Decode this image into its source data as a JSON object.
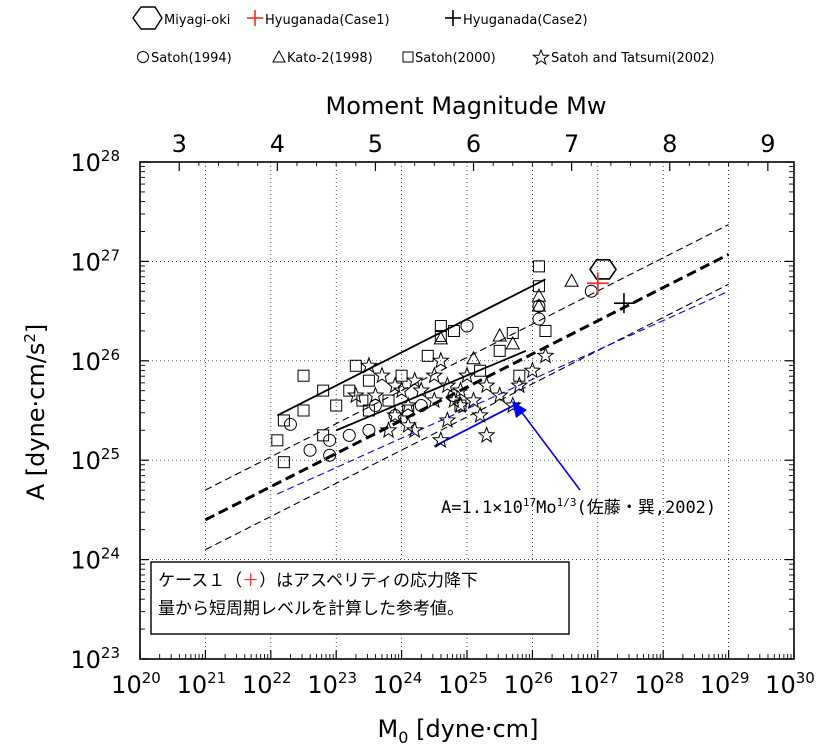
{
  "legend": {
    "row1": [
      {
        "symbol": "hexagon",
        "label": "Miyagi-oki",
        "color": "#000000"
      },
      {
        "symbol": "plus",
        "label": "Hyuganada(Case1)",
        "color": "#ff2a2a"
      },
      {
        "symbol": "plus",
        "label": "Hyuganada(Case2)",
        "color": "#000000"
      }
    ],
    "row2": [
      {
        "symbol": "circle",
        "label": "Satoh(1994)"
      },
      {
        "symbol": "triangle",
        "label": "Kato-2(1998)"
      },
      {
        "symbol": "square",
        "label": "Satoh(2000)"
      },
      {
        "symbol": "star",
        "label": "Satoh and Tatsumi(2002)"
      }
    ]
  },
  "note": {
    "line1_a": "ケース１（",
    "line1_plus": "＋",
    "line1_b": "）はアスペリティの応力降下",
    "line2": "量から短周期レベルを計算した参考値。",
    "plus_color": "#ff2a2a"
  },
  "chart_data": {
    "type": "scatter",
    "xscale": "log",
    "yscale": "log",
    "xlabel_main": "M",
    "xlabel_sub": "0",
    "xlabel_rest": " [dyne·cm]",
    "ylabel": "A [dyne·cm/s",
    "ylabel_sup": "2",
    "ylabel_end": "]",
    "top_axis_title": "Moment Magnitude Mw",
    "xlim_exp": [
      20,
      30
    ],
    "ylim_exp": [
      23,
      28
    ],
    "x_ticks": [
      {
        "base": "10",
        "exp": "20"
      },
      {
        "base": "10",
        "exp": "21"
      },
      {
        "base": "10",
        "exp": "22"
      },
      {
        "base": "10",
        "exp": "23"
      },
      {
        "base": "10",
        "exp": "24"
      },
      {
        "base": "10",
        "exp": "25"
      },
      {
        "base": "10",
        "exp": "26"
      },
      {
        "base": "10",
        "exp": "27"
      },
      {
        "base": "10",
        "exp": "28"
      },
      {
        "base": "10",
        "exp": "29"
      },
      {
        "base": "10",
        "exp": "30"
      }
    ],
    "y_ticks": [
      {
        "base": "10",
        "exp": "23"
      },
      {
        "base": "10",
        "exp": "24"
      },
      {
        "base": "10",
        "exp": "25"
      },
      {
        "base": "10",
        "exp": "26"
      },
      {
        "base": "10",
        "exp": "27"
      },
      {
        "base": "10",
        "exp": "28"
      }
    ],
    "top_ticks": [
      "3",
      "4",
      "5",
      "6",
      "7",
      "8",
      "9"
    ],
    "annotation": {
      "prefix": "A=1.1×10",
      "sup1": "17",
      "mid": "Mo",
      "sup2": "1/3",
      "suffix": "(佐藤・巽,2002)",
      "arrow_color": "#0000ff"
    },
    "lines": [
      {
        "name": "fit",
        "style": "thick-dashed",
        "color": "#000000",
        "logx": [
          21,
          29
        ],
        "logy": [
          24.4,
          27.07
        ]
      },
      {
        "name": "upper",
        "style": "thin-dashed",
        "color": "#000000",
        "logx": [
          21,
          29
        ],
        "logy": [
          24.7,
          27.37
        ]
      },
      {
        "name": "lower",
        "style": "thin-dashed",
        "color": "#000000",
        "logx": [
          21,
          29
        ],
        "logy": [
          24.1,
          26.77
        ]
      },
      {
        "name": "reference",
        "style": "thin-dashed",
        "color": "#0000ff",
        "logx": [
          22.1,
          29
        ],
        "logy": [
          24.66,
          26.7
        ]
      },
      {
        "name": "reference-solid-blue",
        "style": "solid",
        "color": "#0000ff",
        "logx": [
          24.5,
          25.8
        ],
        "logy": [
          25.14,
          25.58
        ]
      },
      {
        "name": "black-solid-upper",
        "style": "solid",
        "color": "#000000",
        "logx": [
          22.1,
          26.2
        ],
        "logy": [
          25.45,
          26.82
        ]
      },
      {
        "name": "black-solid-mid",
        "style": "solid",
        "color": "#000000",
        "logx": [
          23.0,
          25.9
        ],
        "logy": [
          25.3,
          26.1
        ]
      }
    ],
    "points": {
      "miyagi_oki": [
        [
          27.08,
          26.92
        ]
      ],
      "hyuganada_case1": [
        [
          27.0,
          26.78
        ]
      ],
      "hyuganada_case2": [
        [
          27.4,
          26.58
        ]
      ],
      "satoh_1994": [
        [
          22.3,
          25.36
        ],
        [
          22.6,
          25.1
        ],
        [
          22.9,
          25.2
        ],
        [
          23.2,
          25.25
        ],
        [
          23.6,
          25.55
        ],
        [
          23.9,
          25.45
        ],
        [
          24.3,
          25.55
        ],
        [
          25.0,
          26.35
        ],
        [
          26.1,
          26.55
        ],
        [
          26.1,
          26.42
        ],
        [
          26.9,
          26.7
        ],
        [
          24.8,
          25.65
        ],
        [
          23.5,
          25.3
        ],
        [
          22.9,
          25.05
        ]
      ],
      "kato_1998": [
        [
          25.1,
          26.02
        ],
        [
          25.7,
          26.17
        ],
        [
          26.1,
          26.55
        ],
        [
          26.1,
          26.65
        ],
        [
          26.6,
          26.8
        ],
        [
          24.6,
          26.22
        ],
        [
          25.5,
          26.25
        ]
      ],
      "satoh_2000": [
        [
          22.2,
          25.4
        ],
        [
          22.1,
          25.2
        ],
        [
          22.2,
          24.98
        ],
        [
          22.5,
          25.5
        ],
        [
          22.5,
          25.85
        ],
        [
          22.8,
          25.7
        ],
        [
          23.0,
          25.55
        ],
        [
          23.2,
          25.7
        ],
        [
          23.3,
          25.95
        ],
        [
          23.5,
          25.8
        ],
        [
          23.5,
          25.5
        ],
        [
          23.8,
          25.6
        ],
        [
          24.0,
          25.85
        ],
        [
          24.4,
          26.05
        ],
        [
          24.6,
          26.25
        ],
        [
          24.6,
          26.35
        ],
        [
          24.8,
          26.3
        ],
        [
          25.2,
          25.9
        ],
        [
          25.5,
          26.1
        ],
        [
          25.8,
          25.85
        ],
        [
          26.2,
          26.3
        ],
        [
          26.1,
          26.95
        ],
        [
          26.1,
          26.75
        ],
        [
          22.8,
          25.25
        ],
        [
          24.1,
          25.5
        ],
        [
          24.9,
          25.55
        ],
        [
          23.4,
          25.6
        ],
        [
          25.7,
          26.28
        ]
      ],
      "satoh_tatsumi_2002": [
        [
          23.5,
          25.95
        ],
        [
          23.7,
          25.85
        ],
        [
          23.6,
          25.65
        ],
        [
          23.9,
          25.75
        ],
        [
          24.0,
          25.7
        ],
        [
          24.1,
          25.55
        ],
        [
          24.2,
          25.8
        ],
        [
          24.3,
          25.7
        ],
        [
          24.5,
          25.85
        ],
        [
          24.6,
          26.0
        ],
        [
          24.7,
          25.75
        ],
        [
          24.8,
          25.6
        ],
        [
          24.9,
          25.7
        ],
        [
          25.0,
          25.85
        ],
        [
          25.1,
          25.6
        ],
        [
          25.3,
          25.75
        ],
        [
          25.5,
          25.65
        ],
        [
          25.8,
          25.75
        ],
        [
          26.0,
          25.9
        ],
        [
          26.2,
          26.05
        ],
        [
          23.9,
          25.45
        ],
        [
          24.1,
          25.35
        ],
        [
          24.5,
          25.6
        ],
        [
          24.9,
          25.55
        ],
        [
          25.2,
          25.45
        ],
        [
          24.6,
          25.2
        ],
        [
          24.7,
          25.4
        ],
        [
          25.3,
          25.25
        ],
        [
          23.3,
          25.65
        ],
        [
          23.8,
          25.3
        ],
        [
          24.2,
          25.3
        ],
        [
          25.7,
          25.55
        ]
      ]
    }
  }
}
